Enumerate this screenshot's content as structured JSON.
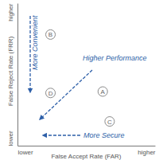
{
  "chart_data": {
    "type": "scatter",
    "x_label": "False Accept Rate (FAR)",
    "y_label": "False Reject Rate (FRR)",
    "labels": [
      "A",
      "B",
      "C",
      "D"
    ],
    "x": [
      6.2,
      2.4,
      6.7,
      2.4
    ],
    "values": [
      3.8,
      7.8,
      1.7,
      3.7
    ],
    "color": "#8a8a8a",
    "marker": "circle",
    "xlim": [
      0,
      10
    ],
    "ylim": [
      0,
      10
    ],
    "xticks": [
      {
        "value": 0,
        "label": "lower"
      },
      {
        "value": 10,
        "label": "higher"
      }
    ],
    "yticks": [
      {
        "value": 0,
        "label": "lower"
      },
      {
        "value": 10,
        "label": "higher"
      }
    ],
    "annotations": [
      "More Convenient",
      "Higher Performance",
      "More Secure"
    ]
  }
}
